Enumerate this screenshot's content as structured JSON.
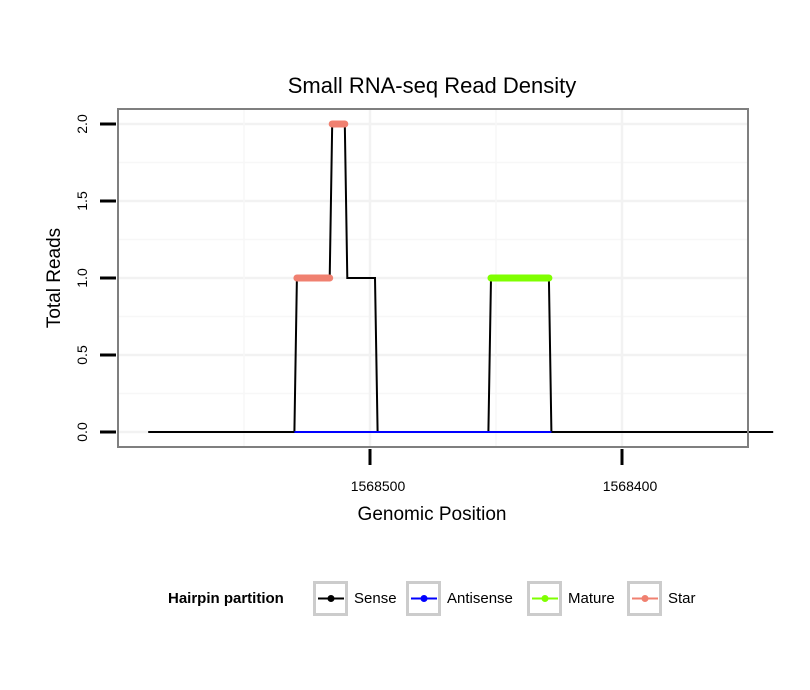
{
  "chart_data": {
    "type": "line",
    "title": "Small RNA-seq Read Density",
    "xlabel": "Genomic Position",
    "ylabel": "Total Reads",
    "x_reversed": true,
    "xlim": [
      1568600,
      1568350
    ],
    "ylim": [
      0,
      2
    ],
    "x_ticks": [
      1568500,
      1568400
    ],
    "x_tick_labels": [
      "1568500",
      "1568400"
    ],
    "y_ticks": [
      0,
      0.5,
      1,
      1.5,
      2
    ],
    "y_tick_labels": [
      "0.0",
      "0.5",
      "1.0",
      "1.5",
      "2.0"
    ],
    "grid": true,
    "legend": {
      "title": "Hairpin partition",
      "position": "bottom",
      "entries": [
        {
          "label": "Sense",
          "color": "#000000"
        },
        {
          "label": "Antisense",
          "color": "#0000ff"
        },
        {
          "label": "Mature",
          "color": "#7fff00"
        },
        {
          "label": "Star",
          "color": "#f08070"
        }
      ]
    },
    "series": [
      {
        "name": "Sense",
        "color": "#000000",
        "x": [
          1568588,
          1568530,
          1568529,
          1568516,
          1568515,
          1568510,
          1568509,
          1568498,
          1568497,
          1568453,
          1568452,
          1568429,
          1568428,
          1568340
        ],
        "y": [
          0,
          0,
          1,
          1,
          2,
          2,
          1,
          1,
          0,
          0,
          1,
          1,
          0,
          0
        ]
      },
      {
        "name": "Antisense",
        "color": "#0000ff",
        "x": [
          1568530,
          1568497,
          1568453,
          1568428
        ],
        "y": [
          0,
          0,
          0,
          0
        ]
      },
      {
        "name": "Mature",
        "color": "#7fff00",
        "x": [
          1568452,
          1568429
        ],
        "y": [
          1,
          1
        ]
      },
      {
        "name": "Star",
        "color": "#f08070",
        "segments": [
          {
            "x": [
              1568529,
              1568516
            ],
            "y": [
              1,
              1
            ]
          },
          {
            "x": [
              1568515,
              1568510
            ],
            "y": [
              2,
              2
            ]
          }
        ]
      }
    ]
  }
}
